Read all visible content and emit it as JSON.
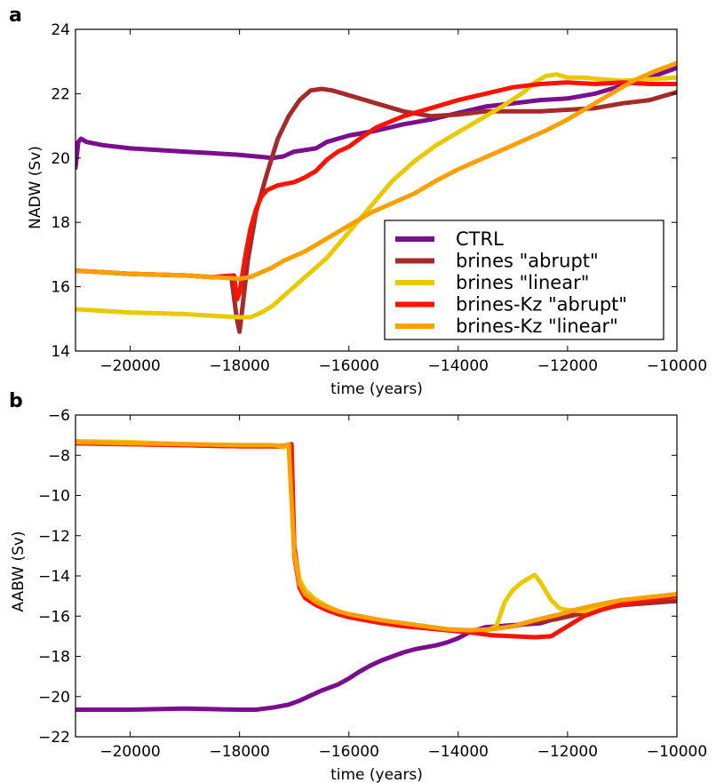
{
  "chart_data": [
    {
      "panel": "a",
      "type": "line",
      "xlabel": "time (years)",
      "ylabel": "NADW (Sv)",
      "xlim": [
        -21000,
        -10000
      ],
      "ylim": [
        14,
        24
      ],
      "xticks": [
        -20000,
        -18000,
        -16000,
        -14000,
        -12000,
        -10000
      ],
      "yticks": [
        14,
        16,
        18,
        20,
        22,
        24
      ],
      "legend": "lower-right",
      "series": [
        {
          "name": "CTRL",
          "color": "#7b0d8f",
          "x": [
            -21000,
            -20950,
            -20900,
            -20800,
            -20500,
            -20000,
            -19000,
            -18500,
            -18000,
            -17700,
            -17400,
            -17200,
            -17000,
            -16800,
            -16600,
            -16400,
            -16000,
            -15500,
            -15000,
            -14500,
            -14000,
            -13500,
            -13000,
            -12500,
            -12000,
            -11500,
            -11000,
            -10500,
            -10000
          ],
          "y": [
            19.7,
            20.5,
            20.6,
            20.5,
            20.4,
            20.3,
            20.2,
            20.15,
            20.1,
            20.05,
            20.0,
            20.05,
            20.2,
            20.25,
            20.3,
            20.5,
            20.7,
            20.85,
            21.05,
            21.2,
            21.4,
            21.6,
            21.7,
            21.8,
            21.85,
            22.0,
            22.25,
            22.5,
            22.8
          ]
        },
        {
          "name": "brines \"abrupt\"",
          "color": "#a52a2a",
          "x": [
            -21000,
            -20500,
            -20000,
            -19000,
            -18500,
            -18150,
            -18050,
            -18000,
            -17950,
            -17850,
            -17700,
            -17500,
            -17300,
            -17100,
            -16900,
            -16700,
            -16500,
            -16300,
            -16000,
            -15500,
            -15000,
            -14500,
            -14000,
            -13500,
            -13000,
            -12500,
            -12000,
            -11500,
            -11000,
            -10500,
            -10000
          ],
          "y": [
            16.5,
            16.45,
            16.4,
            16.35,
            16.3,
            16.3,
            15.0,
            14.6,
            15.3,
            16.8,
            18.3,
            19.5,
            20.6,
            21.3,
            21.8,
            22.1,
            22.15,
            22.1,
            21.95,
            21.7,
            21.45,
            21.3,
            21.35,
            21.45,
            21.45,
            21.45,
            21.5,
            21.55,
            21.7,
            21.8,
            22.05
          ]
        },
        {
          "name": "brines \"linear\"",
          "color": "#ebc900",
          "x": [
            -21000,
            -20500,
            -20000,
            -19000,
            -18500,
            -18000,
            -17800,
            -17600,
            -17400,
            -17200,
            -16800,
            -16400,
            -16000,
            -15600,
            -15200,
            -14800,
            -14400,
            -14000,
            -13600,
            -13200,
            -12800,
            -12600,
            -12400,
            -12200,
            -12000,
            -11700,
            -11400,
            -11000,
            -10500,
            -10000
          ],
          "y": [
            15.3,
            15.25,
            15.2,
            15.15,
            15.1,
            15.05,
            15.05,
            15.2,
            15.4,
            15.7,
            16.3,
            16.9,
            17.7,
            18.5,
            19.3,
            19.9,
            20.4,
            20.8,
            21.2,
            21.6,
            22.05,
            22.35,
            22.55,
            22.6,
            22.5,
            22.5,
            22.45,
            22.4,
            22.45,
            22.5
          ]
        },
        {
          "name": "brines-Kz \"abrupt\"",
          "color": "#ff1300",
          "x": [
            -21000,
            -20500,
            -20000,
            -19000,
            -18500,
            -18100,
            -18050,
            -18000,
            -17900,
            -17800,
            -17700,
            -17600,
            -17500,
            -17300,
            -17000,
            -16800,
            -16600,
            -16400,
            -16200,
            -16000,
            -15800,
            -15500,
            -15000,
            -14500,
            -14000,
            -13500,
            -13000,
            -12500,
            -12000,
            -11500,
            -11000,
            -10500,
            -10000
          ],
          "y": [
            16.5,
            16.45,
            16.4,
            16.35,
            16.3,
            16.35,
            15.6,
            15.8,
            16.9,
            17.8,
            18.4,
            18.8,
            19.0,
            19.15,
            19.25,
            19.4,
            19.6,
            19.95,
            20.2,
            20.35,
            20.6,
            20.95,
            21.3,
            21.55,
            21.8,
            22.0,
            22.2,
            22.3,
            22.35,
            22.3,
            22.35,
            22.3,
            22.3
          ]
        },
        {
          "name": "brines-Kz \"linear\"",
          "color": "#ffa000",
          "x": [
            -21000,
            -20500,
            -20000,
            -19000,
            -18500,
            -18000,
            -17800,
            -17600,
            -17400,
            -17200,
            -16800,
            -16400,
            -16000,
            -15600,
            -15200,
            -14800,
            -14400,
            -14000,
            -13600,
            -13200,
            -12800,
            -12400,
            -12000,
            -11600,
            -11200,
            -10800,
            -10400,
            -10000
          ],
          "y": [
            16.5,
            16.45,
            16.4,
            16.35,
            16.3,
            16.25,
            16.3,
            16.45,
            16.6,
            16.8,
            17.1,
            17.5,
            17.9,
            18.3,
            18.6,
            18.9,
            19.3,
            19.65,
            19.95,
            20.25,
            20.55,
            20.85,
            21.2,
            21.6,
            22.0,
            22.4,
            22.7,
            22.95
          ]
        }
      ]
    },
    {
      "panel": "b",
      "type": "line",
      "xlabel": "time (years)",
      "ylabel": "AABW (Sv)",
      "xlim": [
        -21000,
        -10000
      ],
      "ylim": [
        -22,
        -6
      ],
      "xticks": [
        -20000,
        -18000,
        -16000,
        -14000,
        -12000,
        -10000
      ],
      "yticks": [
        -22,
        -20,
        -18,
        -16,
        -14,
        -12,
        -10,
        -8,
        -6
      ],
      "series": [
        {
          "name": "CTRL",
          "color": "#7b0d8f",
          "x": [
            -21000,
            -20000,
            -19000,
            -18000,
            -17700,
            -17400,
            -17100,
            -16900,
            -16700,
            -16500,
            -16200,
            -16000,
            -15800,
            -15600,
            -15400,
            -15200,
            -15000,
            -14800,
            -14600,
            -14400,
            -14200,
            -14000,
            -13800,
            -13500,
            -13000,
            -12500,
            -12000,
            -11500,
            -11000,
            -10500,
            -10000
          ],
          "y": [
            -20.65,
            -20.65,
            -20.6,
            -20.65,
            -20.65,
            -20.55,
            -20.4,
            -20.2,
            -19.95,
            -19.7,
            -19.4,
            -19.1,
            -18.75,
            -18.45,
            -18.2,
            -18.0,
            -17.8,
            -17.65,
            -17.55,
            -17.45,
            -17.3,
            -17.1,
            -16.8,
            -16.55,
            -16.45,
            -16.35,
            -15.95,
            -15.55,
            -15.35,
            -15.2,
            -15.0
          ]
        },
        {
          "name": "brines \"abrupt\"",
          "color": "#a52a2a",
          "x": [
            -21000,
            -20000,
            -19000,
            -18000,
            -17300,
            -17100,
            -17050,
            -17000,
            -16900,
            -16800,
            -16600,
            -16400,
            -16200,
            -16000,
            -15700,
            -15400,
            -15000,
            -14600,
            -14200,
            -14000,
            -13700,
            -13400,
            -13000,
            -12600,
            -12200,
            -11800,
            -11400,
            -11000,
            -10500,
            -10000
          ],
          "y": [
            -7.4,
            -7.45,
            -7.5,
            -7.55,
            -7.55,
            -7.5,
            -7.45,
            -12.5,
            -14.3,
            -14.9,
            -15.35,
            -15.6,
            -15.8,
            -15.95,
            -16.1,
            -16.25,
            -16.4,
            -16.55,
            -16.7,
            -16.75,
            -16.7,
            -16.65,
            -16.5,
            -16.3,
            -16.15,
            -15.9,
            -15.65,
            -15.45,
            -15.35,
            -15.25
          ]
        },
        {
          "name": "brines \"linear\"",
          "color": "#ebc900",
          "x": [
            -21000,
            -20000,
            -19000,
            -18000,
            -17400,
            -17200,
            -17100,
            -17000,
            -16900,
            -16800,
            -16600,
            -16400,
            -16200,
            -16000,
            -15700,
            -15400,
            -15000,
            -14600,
            -14200,
            -13800,
            -13500,
            -13300,
            -13150,
            -13000,
            -12850,
            -12700,
            -12600,
            -12500,
            -12300,
            -12150,
            -12000,
            -11700,
            -11400,
            -11000,
            -10500,
            -10000
          ],
          "y": [
            -7.3,
            -7.35,
            -7.45,
            -7.5,
            -7.55,
            -7.6,
            -7.5,
            -12.8,
            -14.2,
            -14.7,
            -15.2,
            -15.5,
            -15.75,
            -15.95,
            -16.1,
            -16.25,
            -16.4,
            -16.55,
            -16.7,
            -16.75,
            -16.75,
            -16.5,
            -15.3,
            -14.7,
            -14.35,
            -14.1,
            -13.95,
            -14.3,
            -15.2,
            -15.6,
            -15.7,
            -15.75,
            -15.55,
            -15.3,
            -15.1,
            -14.95
          ]
        },
        {
          "name": "brines-Kz \"abrupt\"",
          "color": "#ff1300",
          "x": [
            -21000,
            -20000,
            -19000,
            -18000,
            -17300,
            -17100,
            -17050,
            -17000,
            -16900,
            -16800,
            -16600,
            -16400,
            -16200,
            -16000,
            -15700,
            -15400,
            -15000,
            -14600,
            -14200,
            -13800,
            -13400,
            -13000,
            -12600,
            -12300,
            -12000,
            -11700,
            -11400,
            -11000,
            -10500,
            -10000
          ],
          "y": [
            -7.4,
            -7.45,
            -7.5,
            -7.55,
            -7.55,
            -7.5,
            -7.45,
            -13.0,
            -14.6,
            -15.1,
            -15.45,
            -15.7,
            -15.9,
            -16.05,
            -16.2,
            -16.35,
            -16.5,
            -16.6,
            -16.7,
            -16.8,
            -16.95,
            -17.0,
            -17.05,
            -17.0,
            -16.5,
            -16.0,
            -15.7,
            -15.4,
            -15.2,
            -15.0
          ]
        },
        {
          "name": "brines-Kz \"linear\"",
          "color": "#ffa000",
          "x": [
            -21000,
            -20000,
            -19000,
            -18000,
            -17400,
            -17200,
            -17100,
            -17000,
            -16900,
            -16800,
            -16600,
            -16400,
            -16200,
            -16000,
            -15700,
            -15400,
            -15000,
            -14600,
            -14200,
            -13800,
            -13400,
            -13000,
            -12600,
            -12200,
            -11800,
            -11400,
            -11000,
            -10500,
            -10000
          ],
          "y": [
            -7.35,
            -7.4,
            -7.45,
            -7.5,
            -7.5,
            -7.55,
            -7.45,
            -12.9,
            -14.4,
            -14.9,
            -15.3,
            -15.55,
            -15.75,
            -15.9,
            -16.05,
            -16.2,
            -16.35,
            -16.5,
            -16.65,
            -16.7,
            -16.65,
            -16.5,
            -16.2,
            -15.95,
            -15.65,
            -15.4,
            -15.2,
            -15.05,
            -14.9
          ]
        }
      ]
    }
  ]
}
